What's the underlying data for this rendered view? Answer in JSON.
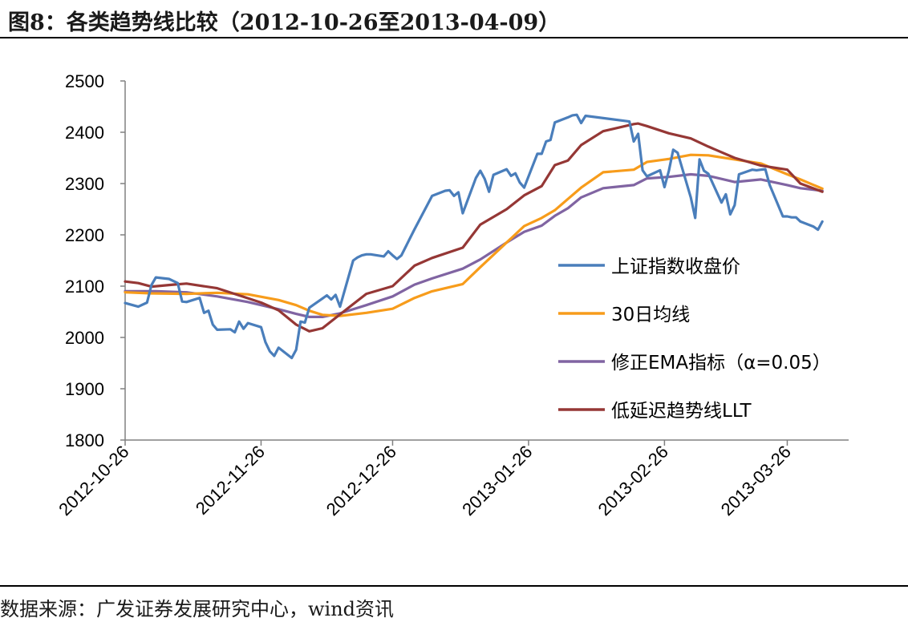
{
  "header": {
    "title": "图8：各类趋势线比较（2012-10-26至2013-04-09）"
  },
  "footer": {
    "source": "数据来源：广发证券发展研究中心，wind资讯"
  },
  "chart_data": {
    "type": "line",
    "title": "",
    "xlabel": "",
    "ylabel": "",
    "ylim": [
      1800,
      2500
    ],
    "yticks": [
      "2500",
      "2400",
      "2300",
      "2200",
      "2100",
      "2000",
      "1900",
      "1800"
    ],
    "xticks": [
      "2012-10-26",
      "2012-11-26",
      "2012-12-26",
      "2013-01-26",
      "2013-02-26",
      "2013-03-26"
    ],
    "grid": false,
    "legend_position": "right",
    "x_start": "2012-10-26",
    "x_end": "2013-04-09",
    "series": [
      {
        "name": "上证指数收盘价",
        "color": "#4a7ebb",
        "points": [
          [
            "2012-10-26",
            2067
          ],
          [
            "2012-10-29",
            2060
          ],
          [
            "2012-10-31",
            2068
          ],
          [
            "2012-11-01",
            2102
          ],
          [
            "2012-11-02",
            2117
          ],
          [
            "2012-11-05",
            2114
          ],
          [
            "2012-11-06",
            2110
          ],
          [
            "2012-11-07",
            2106
          ],
          [
            "2012-11-08",
            2070
          ],
          [
            "2012-11-09",
            2069
          ],
          [
            "2012-11-12",
            2077
          ],
          [
            "2012-11-13",
            2048
          ],
          [
            "2012-11-14",
            2052
          ],
          [
            "2012-11-15",
            2025
          ],
          [
            "2012-11-16",
            2015
          ],
          [
            "2012-11-19",
            2016
          ],
          [
            "2012-11-20",
            2010
          ],
          [
            "2012-11-21",
            2031
          ],
          [
            "2012-11-22",
            2017
          ],
          [
            "2012-11-23",
            2028
          ],
          [
            "2012-11-26",
            2020
          ],
          [
            "2012-11-27",
            1991
          ],
          [
            "2012-11-28",
            1973
          ],
          [
            "2012-11-29",
            1964
          ],
          [
            "2012-11-30",
            1980
          ],
          [
            "2012-12-03",
            1960
          ],
          [
            "2012-12-04",
            1976
          ],
          [
            "2012-12-05",
            2031
          ],
          [
            "2012-12-06",
            2029
          ],
          [
            "2012-12-07",
            2058
          ],
          [
            "2012-12-10",
            2076
          ],
          [
            "2012-12-11",
            2082
          ],
          [
            "2012-12-12",
            2074
          ],
          [
            "2012-12-13",
            2083
          ],
          [
            "2012-12-14",
            2060
          ],
          [
            "2012-12-17",
            2150
          ],
          [
            "2012-12-18",
            2156
          ],
          [
            "2012-12-19",
            2160
          ],
          [
            "2012-12-20",
            2162
          ],
          [
            "2012-12-21",
            2162
          ],
          [
            "2012-12-24",
            2158
          ],
          [
            "2012-12-25",
            2168
          ],
          [
            "2012-12-26",
            2160
          ],
          [
            "2012-12-27",
            2153
          ],
          [
            "2012-12-28",
            2160
          ],
          [
            "2012-12-31",
            2211
          ],
          [
            "2013-01-04",
            2276
          ],
          [
            "2013-01-07",
            2286
          ],
          [
            "2013-01-08",
            2287
          ],
          [
            "2013-01-09",
            2276
          ],
          [
            "2013-01-10",
            2283
          ],
          [
            "2013-01-11",
            2242
          ],
          [
            "2013-01-14",
            2311
          ],
          [
            "2013-01-15",
            2325
          ],
          [
            "2013-01-16",
            2309
          ],
          [
            "2013-01-17",
            2284
          ],
          [
            "2013-01-18",
            2317
          ],
          [
            "2013-01-21",
            2328
          ],
          [
            "2013-01-22",
            2315
          ],
          [
            "2013-01-23",
            2320
          ],
          [
            "2013-01-24",
            2302
          ],
          [
            "2013-01-25",
            2292
          ],
          [
            "2013-01-28",
            2358
          ],
          [
            "2013-01-29",
            2358
          ],
          [
            "2013-01-30",
            2382
          ],
          [
            "2013-01-31",
            2385
          ],
          [
            "2013-02-01",
            2419
          ],
          [
            "2013-02-04",
            2429
          ],
          [
            "2013-02-05",
            2433
          ],
          [
            "2013-02-06",
            2434
          ],
          [
            "2013-02-07",
            2418
          ],
          [
            "2013-02-08",
            2432
          ],
          [
            "2013-02-18",
            2421
          ],
          [
            "2013-02-19",
            2382
          ],
          [
            "2013-02-20",
            2397
          ],
          [
            "2013-02-21",
            2326
          ],
          [
            "2013-02-22",
            2314
          ],
          [
            "2013-02-25",
            2326
          ],
          [
            "2013-02-26",
            2293
          ],
          [
            "2013-02-27",
            2325
          ],
          [
            "2013-02-28",
            2366
          ],
          [
            "2013-03-01",
            2360
          ],
          [
            "2013-03-04",
            2273
          ],
          [
            "2013-03-05",
            2233
          ],
          [
            "2013-03-06",
            2347
          ],
          [
            "2013-03-07",
            2325
          ],
          [
            "2013-03-08",
            2319
          ],
          [
            "2013-03-11",
            2263
          ],
          [
            "2013-03-12",
            2279
          ],
          [
            "2013-03-13",
            2240
          ],
          [
            "2013-03-14",
            2258
          ],
          [
            "2013-03-15",
            2318
          ],
          [
            "2013-03-18",
            2327
          ],
          [
            "2013-03-19",
            2326
          ],
          [
            "2013-03-20",
            2327
          ],
          [
            "2013-03-21",
            2328
          ],
          [
            "2013-03-22",
            2297
          ],
          [
            "2013-03-25",
            2236
          ],
          [
            "2013-03-26",
            2236
          ],
          [
            "2013-03-27",
            2234
          ],
          [
            "2013-03-28",
            2234
          ],
          [
            "2013-03-29",
            2226
          ],
          [
            "2013-04-01",
            2216
          ],
          [
            "2013-04-02",
            2210
          ],
          [
            "2013-04-03",
            2226
          ]
        ]
      },
      {
        "name": "30日均线",
        "color": "#f79c1b",
        "points": [
          [
            "2012-10-26",
            2088
          ],
          [
            "2012-11-01",
            2086
          ],
          [
            "2012-11-09",
            2085
          ],
          [
            "2012-11-16",
            2087
          ],
          [
            "2012-11-23",
            2084
          ],
          [
            "2012-11-30",
            2073
          ],
          [
            "2012-12-04",
            2063
          ],
          [
            "2012-12-07",
            2052
          ],
          [
            "2012-12-10",
            2044
          ],
          [
            "2012-12-14",
            2042
          ],
          [
            "2012-12-20",
            2048
          ],
          [
            "2012-12-26",
            2056
          ],
          [
            "2012-12-31",
            2077
          ],
          [
            "2013-01-04",
            2090
          ],
          [
            "2013-01-11",
            2104
          ],
          [
            "2013-01-15",
            2137
          ],
          [
            "2013-01-21",
            2185
          ],
          [
            "2013-01-25",
            2217
          ],
          [
            "2013-01-29",
            2233
          ],
          [
            "2013-02-01",
            2248
          ],
          [
            "2013-02-04",
            2270
          ],
          [
            "2013-02-07",
            2292
          ],
          [
            "2013-02-12",
            2322
          ],
          [
            "2013-02-19",
            2327
          ],
          [
            "2013-02-22",
            2342
          ],
          [
            "2013-02-27",
            2348
          ],
          [
            "2013-03-04",
            2356
          ],
          [
            "2013-03-08",
            2355
          ],
          [
            "2013-03-14",
            2347
          ],
          [
            "2013-03-20",
            2339
          ],
          [
            "2013-03-26",
            2318
          ],
          [
            "2013-03-29",
            2308
          ],
          [
            "2013-04-03",
            2290
          ]
        ]
      },
      {
        "name": "修正EMA指标（α=0.05）",
        "color": "#8064a2",
        "points": [
          [
            "2012-10-26",
            2090
          ],
          [
            "2012-11-02",
            2090
          ],
          [
            "2012-11-09",
            2088
          ],
          [
            "2012-11-16",
            2080
          ],
          [
            "2012-11-23",
            2069
          ],
          [
            "2012-11-30",
            2055
          ],
          [
            "2012-12-04",
            2046
          ],
          [
            "2012-12-07",
            2040
          ],
          [
            "2012-12-10",
            2040
          ],
          [
            "2012-12-14",
            2047
          ],
          [
            "2012-12-20",
            2063
          ],
          [
            "2012-12-26",
            2080
          ],
          [
            "2012-12-31",
            2103
          ],
          [
            "2013-01-04",
            2115
          ],
          [
            "2013-01-11",
            2134
          ],
          [
            "2013-01-15",
            2152
          ],
          [
            "2013-01-21",
            2185
          ],
          [
            "2013-01-25",
            2206
          ],
          [
            "2013-01-29",
            2218
          ],
          [
            "2013-02-01",
            2237
          ],
          [
            "2013-02-04",
            2252
          ],
          [
            "2013-02-07",
            2273
          ],
          [
            "2013-02-12",
            2291
          ],
          [
            "2013-02-19",
            2297
          ],
          [
            "2013-02-22",
            2310
          ],
          [
            "2013-02-27",
            2313
          ],
          [
            "2013-03-04",
            2318
          ],
          [
            "2013-03-08",
            2315
          ],
          [
            "2013-03-14",
            2303
          ],
          [
            "2013-03-20",
            2308
          ],
          [
            "2013-03-26",
            2297
          ],
          [
            "2013-03-29",
            2291
          ],
          [
            "2013-04-03",
            2286
          ]
        ]
      },
      {
        "name": "低延迟趋势线LLT",
        "color": "#953735",
        "points": [
          [
            "2012-10-26",
            2109
          ],
          [
            "2012-10-29",
            2106
          ],
          [
            "2012-11-01",
            2099
          ],
          [
            "2012-11-06",
            2103
          ],
          [
            "2012-11-09",
            2105
          ],
          [
            "2012-11-16",
            2096
          ],
          [
            "2012-11-21",
            2082
          ],
          [
            "2012-11-26",
            2068
          ],
          [
            "2012-11-30",
            2053
          ],
          [
            "2012-12-03",
            2032
          ],
          [
            "2012-12-04",
            2025
          ],
          [
            "2012-12-07",
            2012
          ],
          [
            "2012-12-10",
            2018
          ],
          [
            "2012-12-14",
            2045
          ],
          [
            "2012-12-20",
            2085
          ],
          [
            "2012-12-26",
            2100
          ],
          [
            "2012-12-31",
            2140
          ],
          [
            "2013-01-04",
            2155
          ],
          [
            "2013-01-11",
            2175
          ],
          [
            "2013-01-15",
            2220
          ],
          [
            "2013-01-21",
            2250
          ],
          [
            "2013-01-25",
            2277
          ],
          [
            "2013-01-29",
            2295
          ],
          [
            "2013-02-01",
            2336
          ],
          [
            "2013-02-04",
            2345
          ],
          [
            "2013-02-07",
            2375
          ],
          [
            "2013-02-12",
            2402
          ],
          [
            "2013-02-19",
            2416
          ],
          [
            "2013-02-20",
            2417
          ],
          [
            "2013-02-22",
            2412
          ],
          [
            "2013-02-27",
            2398
          ],
          [
            "2013-03-04",
            2388
          ],
          [
            "2013-03-08",
            2372
          ],
          [
            "2013-03-14",
            2350
          ],
          [
            "2013-03-20",
            2335
          ],
          [
            "2013-03-26",
            2327
          ],
          [
            "2013-03-29",
            2300
          ],
          [
            "2013-04-03",
            2284
          ]
        ]
      }
    ]
  }
}
